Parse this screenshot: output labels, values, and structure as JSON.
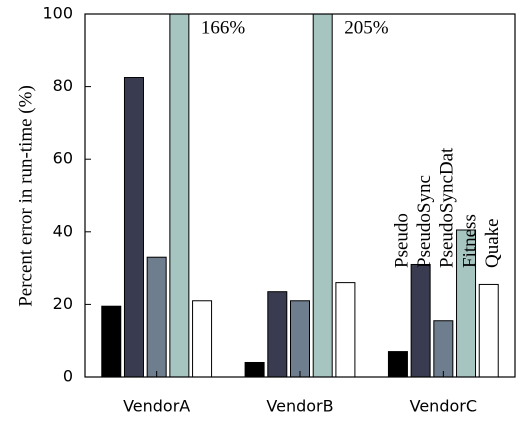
{
  "chart_data": {
    "type": "bar",
    "y_label": "Percent error in run-time (%)",
    "categories": [
      "VendorA",
      "VendorB",
      "VendorC"
    ],
    "series": [
      {
        "name": "Pseudo",
        "color": "#000000",
        "values": [
          19.5,
          4,
          7
        ]
      },
      {
        "name": "PseudoSync",
        "color": "#393b50",
        "values": [
          82.5,
          23.5,
          31
        ]
      },
      {
        "name": "PseudoSyncDat",
        "color": "#6e7e8e",
        "values": [
          33,
          21,
          15.5
        ]
      },
      {
        "name": "Fitness",
        "color": "#a6c5c1",
        "values": [
          166,
          205,
          40.5
        ],
        "value_labels": [
          "166%",
          "205%",
          null
        ]
      },
      {
        "name": "Quake",
        "color": "#ffffff",
        "values": [
          21,
          26,
          25.5
        ]
      }
    ],
    "ylim": [
      0,
      100
    ],
    "yticks": [
      0,
      20,
      40,
      60,
      80,
      100
    ]
  }
}
